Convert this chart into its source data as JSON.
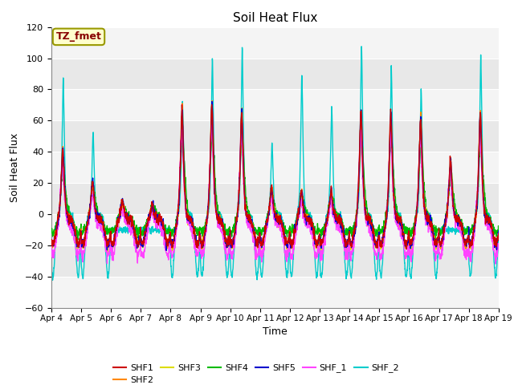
{
  "title": "Soil Heat Flux",
  "xlabel": "Time",
  "ylabel": "Soil Heat Flux",
  "ylim": [
    -60,
    120
  ],
  "yticks": [
    -60,
    -40,
    -20,
    0,
    20,
    40,
    60,
    80,
    100,
    120
  ],
  "xtick_labels": [
    "Apr 4",
    "Apr 5",
    "Apr 6",
    "Apr 7",
    "Apr 8",
    "Apr 9",
    "Apr 10",
    "Apr 11",
    "Apr 12",
    "Apr 13",
    "Apr 14",
    "Apr 15",
    "Apr 16",
    "Apr 17",
    "Apr 18",
    "Apr 19"
  ],
  "series_colors": {
    "SHF1": "#cc0000",
    "SHF2": "#ff8800",
    "SHF3": "#dddd00",
    "SHF4": "#00bb00",
    "SHF5": "#0000cc",
    "SHF_1": "#ff44ff",
    "SHF_2": "#00cccc"
  },
  "tz_fmet_text": "TZ_fmet",
  "tz_fmet_color": "#880000",
  "tz_fmet_bg": "#ffffcc",
  "tz_fmet_edge": "#999900",
  "plot_bg": "#e8e8e8",
  "grid_color": "#ffffff",
  "fig_bg": "#ffffff",
  "n_days": 15,
  "pts_per_day": 144,
  "day_peaks_SHF2": [
    86,
    52,
    10,
    10,
    72,
    100,
    108,
    45,
    90,
    70,
    108,
    95,
    80,
    10,
    100
  ],
  "day_peaks_cluster": [
    45,
    25,
    12,
    10,
    70,
    74,
    68,
    20,
    18,
    18,
    70,
    68,
    65,
    38,
    68
  ]
}
